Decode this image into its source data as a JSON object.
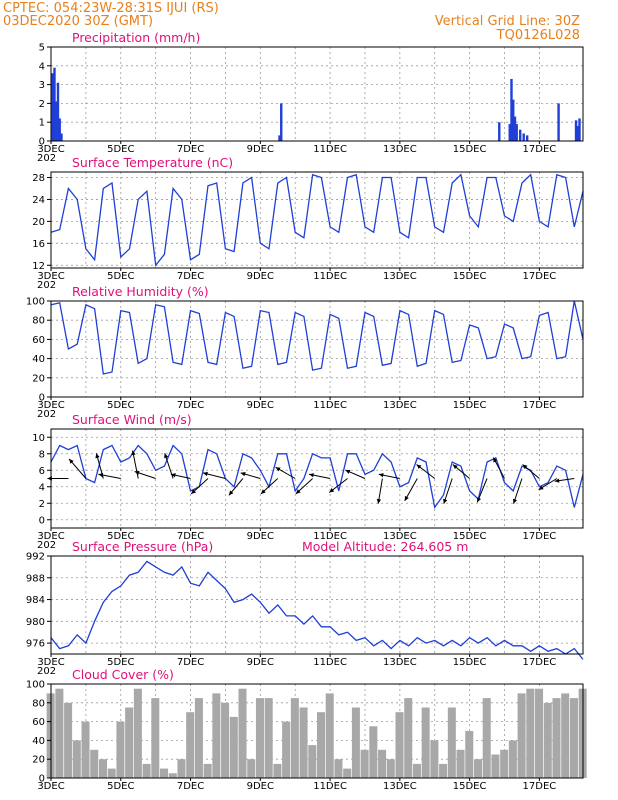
{
  "header": {
    "line1_left": "CPTEC:   054:23W-28:31S   IJUI (RS)",
    "line2_left": "03DEC2020 30Z (GMT)",
    "line1_right": "Vertical Grid Line: 30Z",
    "line2_right": "TQ0126L028",
    "color": "#e8801e"
  },
  "colors": {
    "title": "#e0107a",
    "line": "#1f3fd6",
    "bar": "#1f3fd6",
    "cloud": "#a8a8a8",
    "arrow": "#000000"
  },
  "x_axis": {
    "labels": [
      "3DEC",
      "5DEC",
      "7DEC",
      "9DEC",
      "11DEC",
      "13DEC",
      "15DEC",
      "17DEC"
    ],
    "label_days": [
      0,
      2,
      4,
      6,
      8,
      10,
      12,
      14
    ],
    "grid_days": [
      1,
      2,
      3,
      4,
      5,
      6,
      7,
      8,
      9,
      10,
      11,
      12,
      13,
      14
    ],
    "range_days": [
      0,
      15.25
    ],
    "sublabel": "202"
  },
  "chart_data": [
    {
      "type": "bar",
      "id": "precip",
      "title": "Precipitation (mm/h)",
      "ylim": [
        0,
        5
      ],
      "yticks": [
        0,
        1,
        2,
        3,
        4,
        5
      ],
      "grid": true,
      "points": [
        {
          "x": 0.05,
          "y": 3.6
        },
        {
          "x": 0.1,
          "y": 3.9
        },
        {
          "x": 0.15,
          "y": 2.1
        },
        {
          "x": 0.2,
          "y": 3.1
        },
        {
          "x": 0.25,
          "y": 1.2
        },
        {
          "x": 0.3,
          "y": 0.4
        },
        {
          "x": 6.55,
          "y": 0.3
        },
        {
          "x": 6.6,
          "y": 2.0
        },
        {
          "x": 12.85,
          "y": 1.0
        },
        {
          "x": 13.15,
          "y": 0.9
        },
        {
          "x": 13.2,
          "y": 3.3
        },
        {
          "x": 13.25,
          "y": 2.2
        },
        {
          "x": 13.3,
          "y": 1.3
        },
        {
          "x": 13.35,
          "y": 0.9
        },
        {
          "x": 13.45,
          "y": 0.6
        },
        {
          "x": 13.55,
          "y": 0.4
        },
        {
          "x": 13.65,
          "y": 0.3
        },
        {
          "x": 14.55,
          "y": 2.0
        },
        {
          "x": 15.05,
          "y": 1.1
        },
        {
          "x": 15.1,
          "y": 0.8
        },
        {
          "x": 15.15,
          "y": 1.2
        }
      ]
    },
    {
      "type": "line",
      "id": "temp",
      "title": "Surface Temperature (nC)",
      "ylim": [
        11.5,
        29
      ],
      "yticks": [
        12,
        16,
        20,
        24,
        28
      ],
      "grid": true,
      "x": [
        0,
        0.25,
        0.5,
        0.75,
        1,
        1.25,
        1.5,
        1.75,
        2,
        2.25,
        2.5,
        2.75,
        3,
        3.25,
        3.5,
        3.75,
        4,
        4.25,
        4.5,
        4.75,
        5,
        5.25,
        5.5,
        5.75,
        6,
        6.25,
        6.5,
        6.75,
        7,
        7.25,
        7.5,
        7.75,
        8,
        8.25,
        8.5,
        8.75,
        9,
        9.25,
        9.5,
        9.75,
        10,
        10.25,
        10.5,
        10.75,
        11,
        11.25,
        11.5,
        11.75,
        12,
        12.25,
        12.5,
        12.75,
        13,
        13.25,
        13.5,
        13.75,
        14,
        14.25,
        14.5,
        14.75,
        15,
        15.25
      ],
      "values": [
        18,
        18.5,
        26,
        24,
        15,
        13,
        26,
        27,
        13.5,
        15,
        24,
        25.5,
        12,
        14,
        26,
        24,
        13,
        14,
        26.5,
        27,
        15,
        14.5,
        27,
        28,
        16,
        15,
        27,
        28,
        18,
        17,
        28.5,
        28,
        19,
        18,
        28,
        28.5,
        19,
        18,
        28,
        28,
        18,
        17,
        28,
        28,
        19,
        18,
        27,
        28.5,
        21,
        19,
        28,
        28,
        21,
        20,
        27,
        28.5,
        20,
        19,
        28.5,
        28,
        19,
        25.5
      ]
    },
    {
      "type": "line",
      "id": "rh",
      "title": "Relative Humidity (%)",
      "ylim": [
        0,
        100
      ],
      "yticks": [
        0,
        20,
        40,
        60,
        80,
        100
      ],
      "grid": true,
      "x": [
        0,
        0.25,
        0.5,
        0.75,
        1,
        1.25,
        1.5,
        1.75,
        2,
        2.25,
        2.5,
        2.75,
        3,
        3.25,
        3.5,
        3.75,
        4,
        4.25,
        4.5,
        4.75,
        5,
        5.25,
        5.5,
        5.75,
        6,
        6.25,
        6.5,
        6.75,
        7,
        7.25,
        7.5,
        7.75,
        8,
        8.25,
        8.5,
        8.75,
        9,
        9.25,
        9.5,
        9.75,
        10,
        10.25,
        10.5,
        10.75,
        11,
        11.25,
        11.5,
        11.75,
        12,
        12.25,
        12.5,
        12.75,
        13,
        13.25,
        13.5,
        13.75,
        14,
        14.25,
        14.5,
        14.75,
        15,
        15.25
      ],
      "values": [
        96,
        98,
        50,
        55,
        96,
        92,
        24,
        26,
        90,
        88,
        35,
        40,
        96,
        94,
        36,
        34,
        90,
        87,
        36,
        34,
        88,
        84,
        30,
        32,
        90,
        88,
        34,
        36,
        88,
        84,
        28,
        30,
        86,
        82,
        30,
        32,
        88,
        84,
        33,
        35,
        90,
        86,
        32,
        35,
        90,
        86,
        36,
        38,
        75,
        72,
        40,
        42,
        76,
        72,
        40,
        42,
        85,
        88,
        40,
        42,
        100,
        60
      ]
    },
    {
      "type": "line",
      "id": "wind",
      "title": "Surface Wind (m/s)",
      "ylim": [
        -1,
        11
      ],
      "yticks": [
        0,
        2,
        4,
        6,
        8,
        10
      ],
      "grid": true,
      "x": [
        0,
        0.25,
        0.5,
        0.75,
        1,
        1.25,
        1.5,
        1.75,
        2,
        2.25,
        2.5,
        2.75,
        3,
        3.25,
        3.5,
        3.75,
        4,
        4.25,
        4.5,
        4.75,
        5,
        5.25,
        5.5,
        5.75,
        6,
        6.25,
        6.5,
        6.75,
        7,
        7.25,
        7.5,
        7.75,
        8,
        8.25,
        8.5,
        8.75,
        9,
        9.25,
        9.5,
        9.75,
        10,
        10.25,
        10.5,
        10.75,
        11,
        11.25,
        11.5,
        11.75,
        12,
        12.25,
        12.5,
        12.75,
        13,
        13.25,
        13.5,
        13.75,
        14,
        14.25,
        14.5,
        14.75,
        15,
        15.25
      ],
      "values": [
        7,
        9,
        8.5,
        9,
        5,
        4.5,
        8.5,
        9,
        7,
        7.5,
        9,
        8,
        6,
        6.5,
        9,
        8,
        3.5,
        4,
        8.5,
        8,
        5,
        4,
        8,
        7.5,
        6,
        4,
        8,
        8,
        3.5,
        5,
        8,
        7.5,
        7.5,
        3.5,
        8,
        8,
        5.5,
        6,
        8,
        7,
        4,
        4.5,
        7.5,
        7,
        1.5,
        3,
        7,
        6.5,
        3.5,
        2.5,
        7,
        7.5,
        4.5,
        3.5,
        6.5,
        6,
        4,
        4.5,
        6.5,
        6,
        1.5,
        5.5
      ],
      "vectors": [
        {
          "x": 0.5,
          "u": -1.5,
          "v": 0
        },
        {
          "x": 1.0,
          "u": -1.2,
          "v": 1.4
        },
        {
          "x": 1.5,
          "u": -0.5,
          "v": 1.8
        },
        {
          "x": 2.0,
          "u": -1.6,
          "v": 0.3
        },
        {
          "x": 2.5,
          "u": -0.4,
          "v": 2
        },
        {
          "x": 3.0,
          "u": -1.5,
          "v": 0.5
        },
        {
          "x": 3.5,
          "u": -0.6,
          "v": 1.8
        },
        {
          "x": 4.0,
          "u": -1.4,
          "v": 0.3
        },
        {
          "x": 4.5,
          "u": -1.2,
          "v": -1.1
        },
        {
          "x": 5.0,
          "u": -1.6,
          "v": 0.4
        },
        {
          "x": 5.5,
          "u": -1,
          "v": -1.2
        },
        {
          "x": 6.0,
          "u": -1.4,
          "v": 0.4
        },
        {
          "x": 6.5,
          "u": -1.2,
          "v": -1.1
        },
        {
          "x": 7.0,
          "u": -1.4,
          "v": 0.8
        },
        {
          "x": 7.5,
          "u": -1.2,
          "v": -1.1
        },
        {
          "x": 8.0,
          "u": -1.5,
          "v": 0.3
        },
        {
          "x": 8.5,
          "u": -1.3,
          "v": -1
        },
        {
          "x": 9.0,
          "u": -1.4,
          "v": 0.6
        },
        {
          "x": 9.5,
          "u": -0.3,
          "v": -1.8
        },
        {
          "x": 10.0,
          "u": -1.5,
          "v": 0.3
        },
        {
          "x": 10.5,
          "u": -0.9,
          "v": -1.6
        },
        {
          "x": 11.0,
          "u": -1.3,
          "v": 1
        },
        {
          "x": 11.5,
          "u": -0.6,
          "v": -1.8
        },
        {
          "x": 12.0,
          "u": -1.2,
          "v": 1
        },
        {
          "x": 12.5,
          "u": -0.7,
          "v": -1.7
        },
        {
          "x": 13.0,
          "u": -0.8,
          "v": 1.5
        },
        {
          "x": 13.5,
          "u": -0.6,
          "v": -1.8
        },
        {
          "x": 14.0,
          "u": -1.2,
          "v": 1
        },
        {
          "x": 14.5,
          "u": -1.3,
          "v": -0.8
        },
        {
          "x": 15.0,
          "u": -1.4,
          "v": -0.2
        }
      ]
    },
    {
      "type": "line",
      "id": "pres",
      "title": "Surface Pressure (hPa)",
      "annotation": "Model Altitude: 264.605 m",
      "ylim": [
        974,
        992
      ],
      "yticks": [
        976,
        980,
        984,
        988,
        992
      ],
      "grid": true,
      "x": [
        0,
        0.25,
        0.5,
        0.75,
        1,
        1.25,
        1.5,
        1.75,
        2,
        2.25,
        2.5,
        2.75,
        3,
        3.25,
        3.5,
        3.75,
        4,
        4.25,
        4.5,
        4.75,
        5,
        5.25,
        5.5,
        5.75,
        6,
        6.25,
        6.5,
        6.75,
        7,
        7.25,
        7.5,
        7.75,
        8,
        8.25,
        8.5,
        8.75,
        9,
        9.25,
        9.5,
        9.75,
        10,
        10.25,
        10.5,
        10.75,
        11,
        11.25,
        11.5,
        11.75,
        12,
        12.25,
        12.5,
        12.75,
        13,
        13.25,
        13.5,
        13.75,
        14,
        14.25,
        14.5,
        14.75,
        15,
        15.25
      ],
      "values": [
        977,
        975,
        975.5,
        977.5,
        976,
        980,
        983.5,
        985.5,
        986.5,
        988.5,
        989,
        991,
        990,
        989,
        988.5,
        990,
        987,
        986.5,
        989,
        987.5,
        986,
        983.5,
        984,
        985,
        983.5,
        981.5,
        983,
        981,
        981,
        979.5,
        981,
        979,
        979,
        977.5,
        978,
        976.5,
        977,
        975.5,
        976.5,
        975,
        976.5,
        975.5,
        977,
        976,
        976.5,
        975.5,
        976.5,
        975.5,
        977,
        976,
        977,
        975.5,
        976.5,
        975.5,
        975.5,
        974.5,
        975.5,
        974.5,
        975,
        974,
        975,
        973
      ]
    },
    {
      "type": "bar",
      "id": "cloud",
      "title": "Cloud Cover (%)",
      "ylim": [
        0,
        100
      ],
      "yticks": [
        0,
        20,
        40,
        60,
        80,
        100
      ],
      "grid": true,
      "x": [
        0,
        0.25,
        0.5,
        0.75,
        1,
        1.25,
        1.5,
        1.75,
        2,
        2.25,
        2.5,
        2.75,
        3,
        3.25,
        3.5,
        3.75,
        4,
        4.25,
        4.5,
        4.75,
        5,
        5.25,
        5.5,
        5.75,
        6,
        6.25,
        6.5,
        6.75,
        7,
        7.25,
        7.5,
        7.75,
        8,
        8.25,
        8.5,
        8.75,
        9,
        9.25,
        9.5,
        9.75,
        10,
        10.25,
        10.5,
        10.75,
        11,
        11.25,
        11.5,
        11.75,
        12,
        12.25,
        12.5,
        12.75,
        13,
        13.25,
        13.5,
        13.75,
        14,
        14.25,
        14.5,
        14.75,
        15,
        15.25
      ],
      "values": [
        90,
        95,
        80,
        40,
        60,
        30,
        20,
        10,
        60,
        75,
        95,
        15,
        85,
        10,
        5,
        20,
        70,
        85,
        15,
        90,
        80,
        65,
        95,
        20,
        85,
        85,
        15,
        60,
        85,
        75,
        35,
        70,
        90,
        20,
        10,
        75,
        30,
        55,
        30,
        20,
        70,
        85,
        15,
        75,
        40,
        15,
        75,
        30,
        50,
        20,
        85,
        25,
        30,
        40,
        90,
        95,
        95,
        80,
        85,
        90,
        85,
        95
      ]
    }
  ]
}
